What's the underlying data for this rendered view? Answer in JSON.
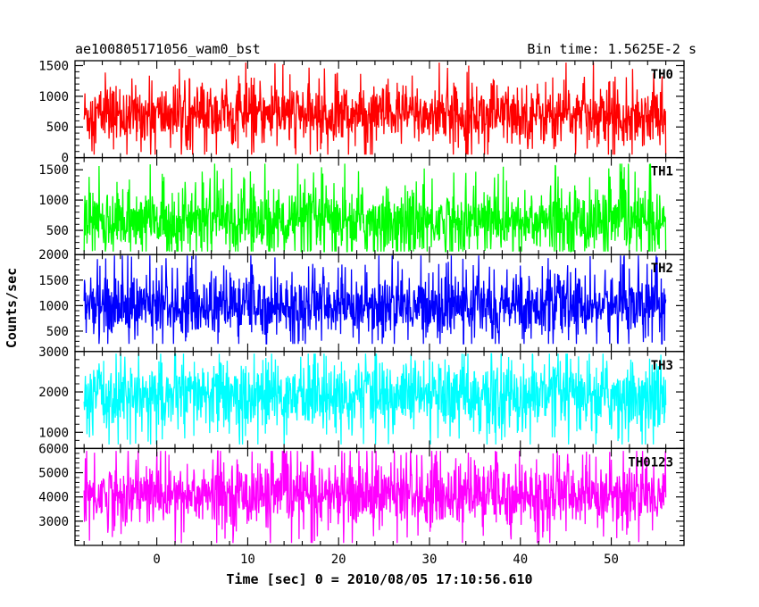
{
  "header": {
    "left": "ae100805171056_wam0_bst",
    "right": "Bin time: 1.5625E-2 s"
  },
  "chart_data": {
    "type": "line",
    "title": "ae100805171056_wam0_bst",
    "subtitle": "Bin time: 1.5625E-2 s",
    "xlabel": "Time [sec] 0 = 2010/08/05 17:10:56.610",
    "ylabel": "Counts/sec",
    "xlim": [
      -9,
      58
    ],
    "x_ticks": [
      0,
      10,
      20,
      30,
      40,
      50
    ],
    "x_tick_labels": [
      "0",
      "10",
      "20",
      "30",
      "40",
      "50"
    ],
    "data_x_range": [
      -8,
      56
    ],
    "bin_time": 0.015625,
    "grid": false,
    "panels": [
      {
        "name": "TH0",
        "color": "#ff0000",
        "ylim": [
          0,
          1580
        ],
        "yticks": [
          0,
          500,
          1000,
          1500
        ],
        "ytick_labels": [
          "0",
          "500",
          "1000",
          "1500"
        ],
        "typical_range": [
          300,
          1100
        ],
        "mean": 700,
        "min": 50,
        "max": 1550
      },
      {
        "name": "TH1",
        "color": "#00ff00",
        "ylim": [
          100,
          1700
        ],
        "yticks": [
          500,
          1000,
          1500
        ],
        "ytick_labels": [
          "500",
          "1000",
          "1500"
        ],
        "typical_range": [
          200,
          1100
        ],
        "mean": 650,
        "min": 150,
        "max": 1600
      },
      {
        "name": "TH2",
        "color": "#0000ff",
        "ylim": [
          100,
          2000
        ],
        "yticks": [
          500,
          1000,
          1500,
          2000
        ],
        "ytick_labels": [
          "500",
          "1000",
          "1500",
          "2000"
        ],
        "typical_range": [
          500,
          1500
        ],
        "mean": 1000,
        "min": 250,
        "max": 1980
      },
      {
        "name": "TH3",
        "color": "#00ffff",
        "ylim": [
          600,
          3000
        ],
        "yticks": [
          1000,
          2000,
          3000
        ],
        "ytick_labels": [
          "1000",
          "2000",
          "3000"
        ],
        "typical_range": [
          1200,
          2600
        ],
        "mean": 1900,
        "min": 700,
        "max": 2950
      },
      {
        "name": "TH0123",
        "color": "#ff00ff",
        "ylim": [
          2000,
          6000
        ],
        "yticks": [
          3000,
          4000,
          5000,
          6000
        ],
        "ytick_labels": [
          "3000",
          "4000",
          "5000",
          "6000"
        ],
        "typical_range": [
          3000,
          5200
        ],
        "mean": 4100,
        "min": 2100,
        "max": 5900
      }
    ]
  }
}
